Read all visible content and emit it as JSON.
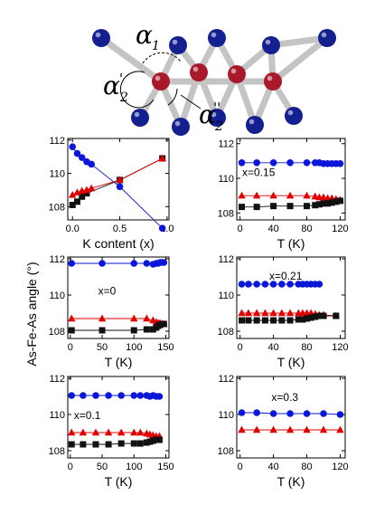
{
  "figure": {
    "ylabel": "As-Fe-As angle (°)",
    "molecule_labels": [
      "α",
      "1",
      "α",
      "'",
      "2",
      "α",
      "''",
      "2"
    ]
  },
  "colors": {
    "black": "#111111",
    "red": "#e00000",
    "blue": "#0a16d8",
    "ball_blue": "#14208f",
    "ball_red": "#a8192a",
    "bond": "#c4c4c4"
  },
  "chart_data": [
    {
      "type": "line",
      "xlabel": "K content (x)",
      "ylabel": "",
      "xlim": [
        -0.05,
        1.02
      ],
      "ylim": [
        107.2,
        112.1
      ],
      "xticks": [
        0.0,
        0.5,
        1.0
      ],
      "xticklabels": [
        "0.0",
        "0.5",
        "1.0"
      ],
      "yticks": [
        108,
        110,
        112
      ],
      "yticklabels": [
        "108",
        "110",
        "112"
      ],
      "annotation": "",
      "series": [
        {
          "color": "black",
          "marker": "square",
          "x": [
            0,
            0.05,
            0.1,
            0.15,
            0.5,
            0.95
          ],
          "y": [
            108.1,
            108.3,
            108.6,
            108.8,
            109.6,
            110.9
          ]
        },
        {
          "color": "red",
          "marker": "triangle",
          "x": [
            0,
            0.05,
            0.1,
            0.15,
            0.2,
            0.5,
            0.95
          ],
          "y": [
            108.7,
            108.85,
            108.95,
            109.0,
            109.1,
            109.6,
            110.9
          ]
        },
        {
          "color": "blue",
          "marker": "circle",
          "x": [
            0,
            0.05,
            0.1,
            0.15,
            0.2,
            0.5,
            0.95
          ],
          "y": [
            111.6,
            111.2,
            110.95,
            110.7,
            110.55,
            109.2,
            106.7
          ]
        }
      ]
    },
    {
      "type": "line",
      "xlabel": "T (K)",
      "ylabel": "",
      "xlim": [
        -4,
        126
      ],
      "ylim": [
        107.6,
        112.3
      ],
      "xticks": [
        0,
        40,
        80,
        120
      ],
      "xticklabels": [
        "0",
        "40",
        "80",
        "120"
      ],
      "yticks": [
        108,
        110,
        112
      ],
      "yticklabels": [
        "108",
        "110",
        "112"
      ],
      "annotation": "x=0.15",
      "series": [
        {
          "color": "blue",
          "marker": "circle",
          "x": [
            2,
            20,
            40,
            60,
            80,
            90,
            95,
            100,
            105,
            110,
            115,
            120
          ],
          "y": [
            110.9,
            110.9,
            110.9,
            110.9,
            110.9,
            110.9,
            110.9,
            110.85,
            110.85,
            110.85,
            110.85,
            110.85
          ]
        },
        {
          "color": "red",
          "marker": "triangle",
          "x": [
            2,
            20,
            40,
            60,
            80,
            90,
            95,
            100,
            105,
            110,
            115,
            120
          ],
          "y": [
            109.0,
            109.0,
            109.0,
            109.0,
            109.0,
            108.95,
            108.9,
            108.9,
            108.85,
            108.85,
            108.8,
            108.75
          ]
        },
        {
          "color": "black",
          "marker": "square",
          "x": [
            2,
            20,
            40,
            60,
            80,
            90,
            95,
            100,
            105,
            110,
            115,
            120
          ],
          "y": [
            108.35,
            108.35,
            108.4,
            108.4,
            108.4,
            108.45,
            108.5,
            108.55,
            108.55,
            108.6,
            108.65,
            108.7
          ]
        }
      ]
    },
    {
      "type": "line",
      "xlabel": "T (K)",
      "ylabel": "",
      "xlim": [
        -4,
        155
      ],
      "ylim": [
        107.6,
        112.1
      ],
      "xticks": [
        0,
        50,
        100,
        150
      ],
      "xticklabels": [
        "0",
        "50",
        "100",
        "150"
      ],
      "yticks": [
        108,
        110,
        112
      ],
      "yticklabels": [
        "108",
        "110",
        "112"
      ],
      "annotation": "x=0",
      "series": [
        {
          "color": "blue",
          "marker": "circle",
          "x": [
            2,
            50,
            100,
            120,
            130,
            135,
            138,
            141,
            144,
            147
          ],
          "y": [
            111.75,
            111.75,
            111.75,
            111.75,
            111.7,
            111.75,
            111.75,
            111.8,
            111.8,
            111.8
          ]
        },
        {
          "color": "red",
          "marker": "triangle",
          "x": [
            2,
            50,
            100,
            120,
            130,
            135,
            138,
            141,
            144,
            147
          ],
          "y": [
            108.7,
            108.7,
            108.7,
            108.7,
            108.6,
            108.5,
            108.45,
            108.45,
            108.4,
            108.4
          ]
        },
        {
          "color": "black",
          "marker": "square",
          "x": [
            2,
            50,
            100,
            120,
            130,
            135,
            138,
            141,
            144,
            147
          ],
          "y": [
            108.05,
            108.05,
            108.05,
            108.1,
            108.1,
            108.2,
            108.3,
            108.35,
            108.4,
            108.4
          ]
        }
      ]
    },
    {
      "type": "line",
      "xlabel": "T (K)",
      "ylabel": "",
      "xlim": [
        -4,
        126
      ],
      "ylim": [
        107.6,
        112.1
      ],
      "xticks": [
        0,
        40,
        80,
        120
      ],
      "xticklabels": [
        "0",
        "40",
        "80",
        "120"
      ],
      "yticks": [
        108,
        110,
        112
      ],
      "yticklabels": [
        "108",
        "110",
        "112"
      ],
      "annotation": "x=0.21",
      "series": [
        {
          "color": "blue",
          "marker": "circle",
          "x": [
            2,
            10,
            20,
            30,
            40,
            50,
            60,
            70,
            75,
            80,
            85,
            90,
            95
          ],
          "y": [
            110.6,
            110.6,
            110.6,
            110.6,
            110.6,
            110.6,
            110.6,
            110.6,
            110.6,
            110.6,
            110.6,
            110.6,
            110.6
          ]
        },
        {
          "color": "red",
          "marker": "triangle",
          "x": [
            2,
            10,
            20,
            30,
            40,
            50,
            60,
            70,
            75,
            80,
            85,
            90,
            95,
            100,
            115
          ],
          "y": [
            109.0,
            109.0,
            109.0,
            109.0,
            109.0,
            109.0,
            109.0,
            109.0,
            109.0,
            109.0,
            109.0,
            108.95,
            108.9,
            108.9,
            108.85
          ]
        },
        {
          "color": "black",
          "marker": "square",
          "x": [
            2,
            10,
            20,
            30,
            40,
            50,
            60,
            70,
            75,
            80,
            85,
            90,
            95,
            100,
            115
          ],
          "y": [
            108.6,
            108.6,
            108.6,
            108.6,
            108.6,
            108.6,
            108.6,
            108.65,
            108.65,
            108.7,
            108.75,
            108.8,
            108.85,
            108.85,
            108.85
          ]
        }
      ]
    },
    {
      "type": "line",
      "xlabel": "T (K)",
      "ylabel": "",
      "xlim": [
        -4,
        155
      ],
      "ylim": [
        107.6,
        112.1
      ],
      "xticks": [
        0,
        50,
        100,
        150
      ],
      "xticklabels": [
        "0",
        "50",
        "100",
        "150"
      ],
      "yticks": [
        108,
        110,
        112
      ],
      "yticklabels": [
        "108",
        "110",
        "112"
      ],
      "annotation": "x=0.1",
      "series": [
        {
          "color": "blue",
          "marker": "circle",
          "x": [
            2,
            20,
            40,
            60,
            80,
            100,
            110,
            120,
            125,
            130,
            135,
            140
          ],
          "y": [
            111.05,
            111.05,
            111.05,
            111.05,
            111.05,
            111.05,
            111.05,
            111.05,
            111.0,
            111.05,
            111.0,
            111.0
          ]
        },
        {
          "color": "red",
          "marker": "triangle",
          "x": [
            2,
            20,
            40,
            60,
            80,
            100,
            110,
            120,
            125,
            130,
            135,
            140
          ],
          "y": [
            109.0,
            109.0,
            109.0,
            109.0,
            109.0,
            109.0,
            109.0,
            108.95,
            108.9,
            108.85,
            108.8,
            108.8
          ]
        },
        {
          "color": "black",
          "marker": "square",
          "x": [
            2,
            20,
            40,
            60,
            80,
            100,
            110,
            120,
            125,
            130,
            135,
            140
          ],
          "y": [
            108.35,
            108.35,
            108.35,
            108.35,
            108.4,
            108.4,
            108.4,
            108.45,
            108.5,
            108.55,
            108.6,
            108.6
          ]
        }
      ]
    },
    {
      "type": "line",
      "xlabel": "T (K)",
      "ylabel": "",
      "xlim": [
        -4,
        126
      ],
      "ylim": [
        107.6,
        112.1
      ],
      "xticks": [
        0,
        40,
        80,
        120
      ],
      "xticklabels": [
        "0",
        "40",
        "80",
        "120"
      ],
      "yticks": [
        108,
        110,
        112
      ],
      "yticklabels": [
        "108",
        "110",
        "112"
      ],
      "annotation": "x=0.3",
      "series": [
        {
          "color": "blue",
          "marker": "circle",
          "x": [
            2,
            20,
            40,
            60,
            80,
            100,
            120
          ],
          "y": [
            110.1,
            110.1,
            110.05,
            110.05,
            110.05,
            110.05,
            110.0
          ]
        },
        {
          "color": "red",
          "marker": "triangle",
          "x": [
            2,
            20,
            40,
            60,
            80,
            100,
            120
          ],
          "y": [
            109.15,
            109.15,
            109.15,
            109.15,
            109.15,
            109.15,
            109.15
          ]
        }
      ]
    }
  ]
}
